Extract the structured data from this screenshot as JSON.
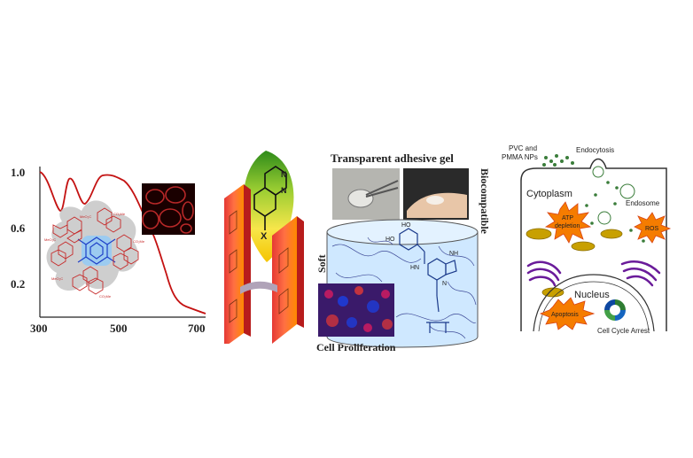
{
  "panel1": {
    "y_ticks": [
      "1.0",
      "0.6",
      "0.2"
    ],
    "x_ticks": [
      "300",
      "500",
      "700"
    ]
  },
  "panel3": {
    "title": "Transparent adhesive gel",
    "side_right": "Biocompatible",
    "side_left": "Soft",
    "bottom": "Cell Proliferation",
    "mol_ho_top": "HO",
    "mol_ho_left": "HO",
    "mol_nh2": "NH",
    "mol_hn": "HN",
    "mol_n": "N"
  },
  "panel4": {
    "pvc_line1": "PVC and",
    "pvc_line2": "PMMA NPs",
    "endocytosis": "Endocytosis",
    "cytoplasm": "Cytoplasm",
    "endosome": "Endosome",
    "atp_line1": "ATP",
    "atp_line2": "depletion",
    "ros": "ROS",
    "nucleus": "Nucleus",
    "apoptosis": "Apoptosis",
    "cell_cycle": "Cell Cycle Arrest"
  },
  "colors": {
    "curve": "#c41212",
    "molecule_red": "#c62828",
    "molecule_blue": "#1e40c8",
    "star_orange": "#f57c00",
    "star_yellow": "#ffd54f",
    "mito": "#c8a000",
    "golgi": "#6a1b9a"
  }
}
